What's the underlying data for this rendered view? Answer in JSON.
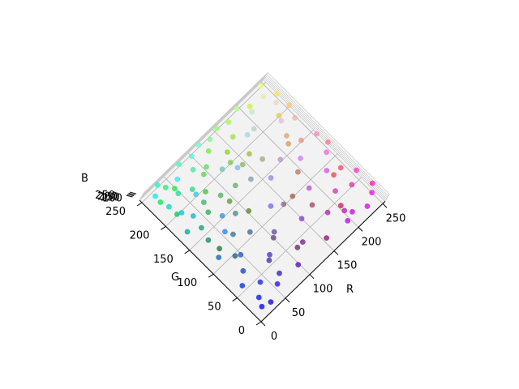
{
  "chart_data": {
    "type": "scatter",
    "projection": "3d",
    "title": "",
    "xlabel": "R",
    "ylabel": "G",
    "zlabel": "B",
    "xlim": [
      0,
      255
    ],
    "ylim": [
      0,
      255
    ],
    "zlim": [
      0,
      255
    ],
    "xticks": [
      "0",
      "50",
      "100",
      "150",
      "200",
      "250"
    ],
    "yticks": [
      "0",
      "50",
      "100",
      "150",
      "200",
      "250"
    ],
    "zticks": [
      "250",
      "200",
      "150",
      "100"
    ],
    "grid": true,
    "legend": "none",
    "point_color": "rgb of the point (R, G, B)",
    "points": [
      [
        5,
        12,
        250
      ],
      [
        12,
        25,
        238
      ],
      [
        20,
        8,
        230
      ],
      [
        30,
        40,
        225
      ],
      [
        45,
        20,
        245
      ],
      [
        8,
        55,
        215
      ],
      [
        60,
        30,
        205
      ],
      [
        25,
        70,
        200
      ],
      [
        70,
        60,
        190
      ],
      [
        40,
        90,
        185
      ],
      [
        90,
        20,
        175
      ],
      [
        15,
        110,
        170
      ],
      [
        100,
        80,
        160
      ],
      [
        55,
        120,
        150
      ],
      [
        120,
        40,
        140
      ],
      [
        80,
        140,
        135
      ],
      [
        140,
        100,
        130
      ],
      [
        30,
        160,
        125
      ],
      [
        150,
        20,
        120
      ],
      [
        110,
        170,
        115
      ],
      [
        170,
        70,
        110
      ],
      [
        60,
        185,
        105
      ],
      [
        190,
        120,
        100
      ],
      [
        20,
        200,
        95
      ],
      [
        200,
        40,
        92
      ],
      [
        130,
        200,
        90
      ],
      [
        210,
        160,
        88
      ],
      [
        90,
        215,
        85
      ],
      [
        225,
        80,
        84
      ],
      [
        45,
        230,
        80
      ],
      [
        230,
        200,
        78
      ],
      [
        160,
        225,
        76
      ],
      [
        240,
        20,
        220
      ],
      [
        248,
        60,
        200
      ],
      [
        235,
        110,
        215
      ],
      [
        252,
        30,
        180
      ],
      [
        220,
        10,
        240
      ],
      [
        245,
        140,
        190
      ],
      [
        200,
        20,
        210
      ],
      [
        230,
        50,
        160
      ],
      [
        215,
        90,
        235
      ],
      [
        250,
        120,
        150
      ],
      [
        185,
        15,
        225
      ],
      [
        240,
        180,
        170
      ],
      [
        205,
        60,
        190
      ],
      [
        225,
        150,
        130
      ],
      [
        195,
        30,
        165
      ],
      [
        250,
        200,
        110
      ],
      [
        180,
        90,
        205
      ],
      [
        238,
        80,
        120
      ],
      [
        10,
        240,
        230
      ],
      [
        25,
        250,
        205
      ],
      [
        50,
        235,
        245
      ],
      [
        15,
        215,
        190
      ],
      [
        70,
        250,
        180
      ],
      [
        40,
        220,
        160
      ],
      [
        90,
        245,
        220
      ],
      [
        20,
        195,
        235
      ],
      [
        60,
        210,
        140
      ],
      [
        110,
        250,
        200
      ],
      [
        35,
        240,
        120
      ],
      [
        80,
        230,
        165
      ],
      [
        130,
        245,
        150
      ],
      [
        15,
        230,
        100
      ],
      [
        100,
        220,
        95
      ],
      [
        150,
        250,
        120
      ],
      [
        55,
        200,
        215
      ],
      [
        120,
        235,
        70
      ],
      [
        170,
        245,
        90
      ],
      [
        30,
        180,
        205
      ],
      [
        75,
        195,
        60
      ],
      [
        190,
        250,
        140
      ],
      [
        210,
        240,
        60
      ],
      [
        140,
        215,
        40
      ],
      [
        240,
        250,
        120
      ],
      [
        170,
        210,
        230
      ],
      [
        200,
        230,
        200
      ],
      [
        230,
        235,
        160
      ],
      [
        110,
        200,
        185
      ],
      [
        250,
        225,
        90
      ],
      [
        160,
        190,
        60
      ],
      [
        85,
        175,
        100
      ],
      [
        130,
        160,
        175
      ],
      [
        60,
        150,
        215
      ],
      [
        100,
        130,
        55
      ],
      [
        150,
        140,
        220
      ],
      [
        45,
        130,
        240
      ],
      [
        180,
        150,
        200
      ],
      [
        75,
        105,
        150
      ],
      [
        120,
        110,
        230
      ],
      [
        160,
        100,
        80
      ],
      [
        35,
        95,
        140
      ],
      [
        95,
        75,
        120
      ],
      [
        140,
        65,
        210
      ],
      [
        65,
        55,
        160
      ],
      [
        110,
        40,
        115
      ],
      [
        175,
        45,
        180
      ],
      [
        25,
        140,
        110
      ],
      [
        200,
        130,
        245
      ],
      [
        220,
        190,
        230
      ],
      [
        185,
        210,
        190
      ],
      [
        215,
        170,
        120
      ],
      [
        235,
        215,
        200
      ],
      [
        165,
        170,
        130
      ],
      [
        125,
        185,
        240
      ],
      [
        90,
        160,
        60
      ],
      [
        55,
        170,
        90
      ],
      [
        140,
        185,
        100
      ],
      [
        10,
        170,
        150
      ],
      [
        30,
        120,
        60
      ]
    ]
  }
}
